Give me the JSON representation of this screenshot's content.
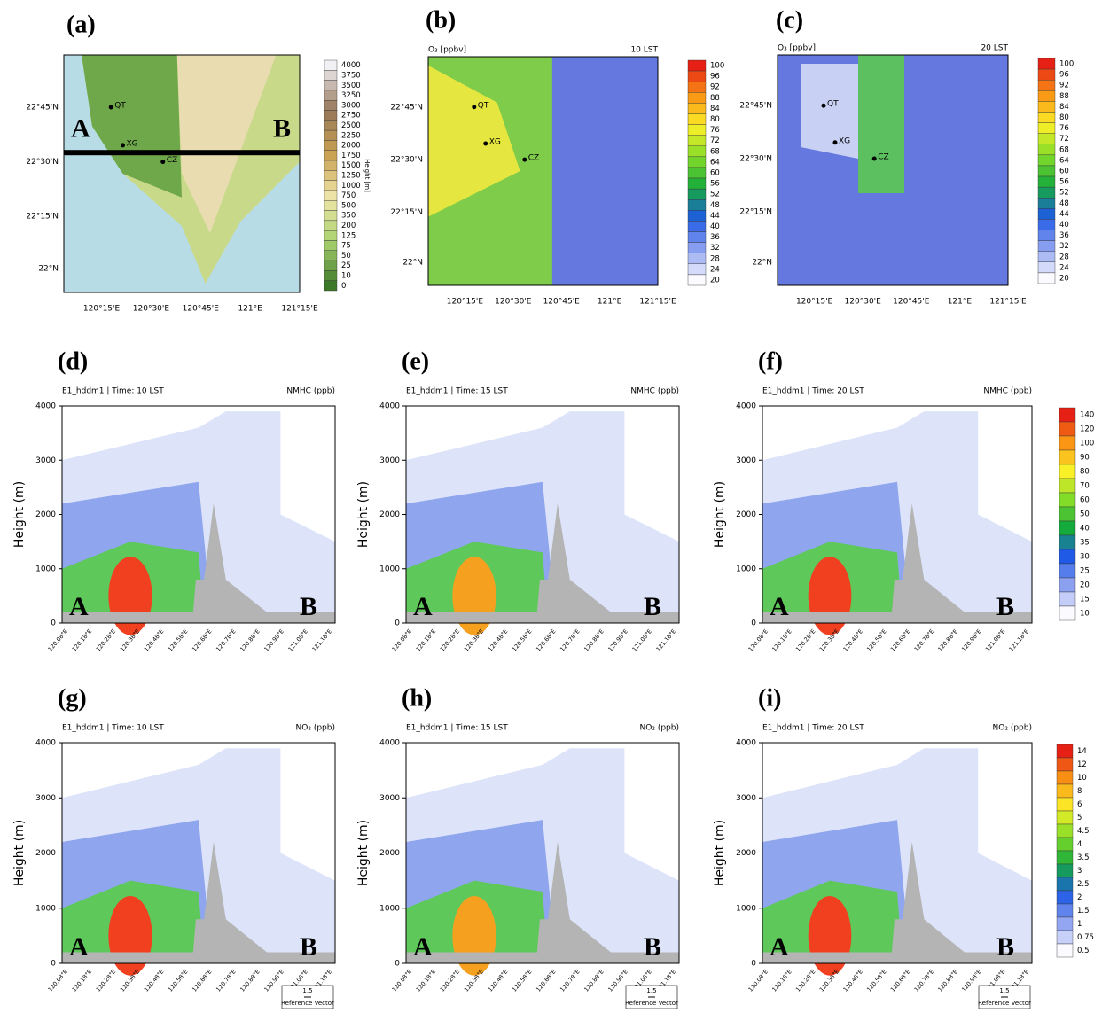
{
  "maps": [
    {
      "label": "(a)",
      "lat_ticks": [
        "22°45'N",
        "22°30'N",
        "22°15'N",
        "22°N"
      ],
      "lon_ticks": [
        "120°15'E",
        "120°30'E",
        "120°45'E",
        "121°E",
        "121°15'E"
      ],
      "places": [
        "QT",
        "XG",
        "CZ"
      ],
      "ends": [
        "A",
        "B"
      ]
    },
    {
      "label": "(b)",
      "title_left": "O₃ [ppbv]",
      "title_right": "10 LST",
      "lat_ticks": [
        "22°45'N",
        "22°30'N",
        "22°15'N",
        "22°N"
      ],
      "lon_ticks": [
        "120°15'E",
        "120°30'E",
        "120°45'E",
        "121°E",
        "121°15'E"
      ],
      "places": [
        "QT",
        "XG",
        "CZ"
      ]
    },
    {
      "label": "(c)",
      "title_left": "O₃ [ppbv]",
      "title_right": "20 LST",
      "lat_ticks": [
        "22°45'N",
        "22°30'N",
        "22°15'N",
        "22°N"
      ],
      "lon_ticks": [
        "120°15'E",
        "120°30'E",
        "120°45'E",
        "121°E",
        "121°15'E"
      ],
      "places": [
        "QT",
        "XG",
        "CZ"
      ]
    }
  ],
  "colorbars": [
    {
      "title": "Height [m]",
      "labels": [
        "4000",
        "3750",
        "3500",
        "3250",
        "3000",
        "2750",
        "2500",
        "2250",
        "2000",
        "1750",
        "1500",
        "1250",
        "1000",
        "750",
        "500",
        "350",
        "200",
        "125",
        "75",
        "50",
        "25",
        "10",
        "0"
      ]
    },
    {
      "labels": [
        "100",
        "96",
        "92",
        "88",
        "84",
        "80",
        "76",
        "72",
        "68",
        "64",
        "60",
        "56",
        "52",
        "48",
        "44",
        "40",
        "36",
        "32",
        "28",
        "24",
        "20"
      ]
    },
    {
      "labels": [
        "100",
        "96",
        "92",
        "88",
        "84",
        "80",
        "76",
        "72",
        "68",
        "64",
        "60",
        "56",
        "52",
        "48",
        "44",
        "40",
        "36",
        "32",
        "28",
        "24",
        "20"
      ]
    },
    {
      "labels": [
        "140",
        "120",
        "100",
        "90",
        "80",
        "70",
        "60",
        "50",
        "40",
        "35",
        "30",
        "25",
        "20",
        "15",
        "10"
      ]
    },
    {
      "labels": [
        "14",
        "12",
        "10",
        "8",
        "6",
        "5",
        "4.5",
        "4",
        "3.5",
        "3",
        "2.5",
        "2",
        "1.5",
        "1",
        "0.75",
        "0.5"
      ]
    }
  ],
  "sections": [
    {
      "label": "(d)",
      "title_left": "E1_hddm1 | Time: 10 LST",
      "title_right": "NMHC (ppb)"
    },
    {
      "label": "(e)",
      "title_left": "E1_hddm1 | Time: 15 LST",
      "title_right": "NMHC (ppb)"
    },
    {
      "label": "(f)",
      "title_left": "E1_hddm1 | Time: 20 LST",
      "title_right": "NMHC (ppb)"
    },
    {
      "label": "(g)",
      "title_left": "E1_hddm1 | Time: 10 LST",
      "title_right": "NO₂ (ppb)"
    },
    {
      "label": "(h)",
      "title_left": "E1_hddm1 | Time: 15 LST",
      "title_right": "NO₂ (ppb)"
    },
    {
      "label": "(i)",
      "title_left": "E1_hddm1 | Time: 20 LST",
      "title_right": "NO₂ (ppb)"
    }
  ],
  "section_axes": {
    "y_label": "Height (m)",
    "ylim": [
      0,
      4000
    ],
    "yticks": [
      0,
      1000,
      2000,
      3000,
      4000
    ],
    "xticks": [
      "120.08°E",
      "120.18°E",
      "120.28°E",
      "120.38°E",
      "120.48°E",
      "120.58°E",
      "120.68°E",
      "120.78°E",
      "120.88°E",
      "120.98°E",
      "121.08°E",
      "121.18°E"
    ],
    "ends": [
      "A",
      "B"
    ]
  },
  "reference_vectors": [
    {
      "value": "1.5",
      "label": "Reference Vector"
    },
    {
      "value": "1.5",
      "label": "Reference Vector"
    },
    {
      "value": "1.5",
      "label": "Reference Vector"
    }
  ]
}
